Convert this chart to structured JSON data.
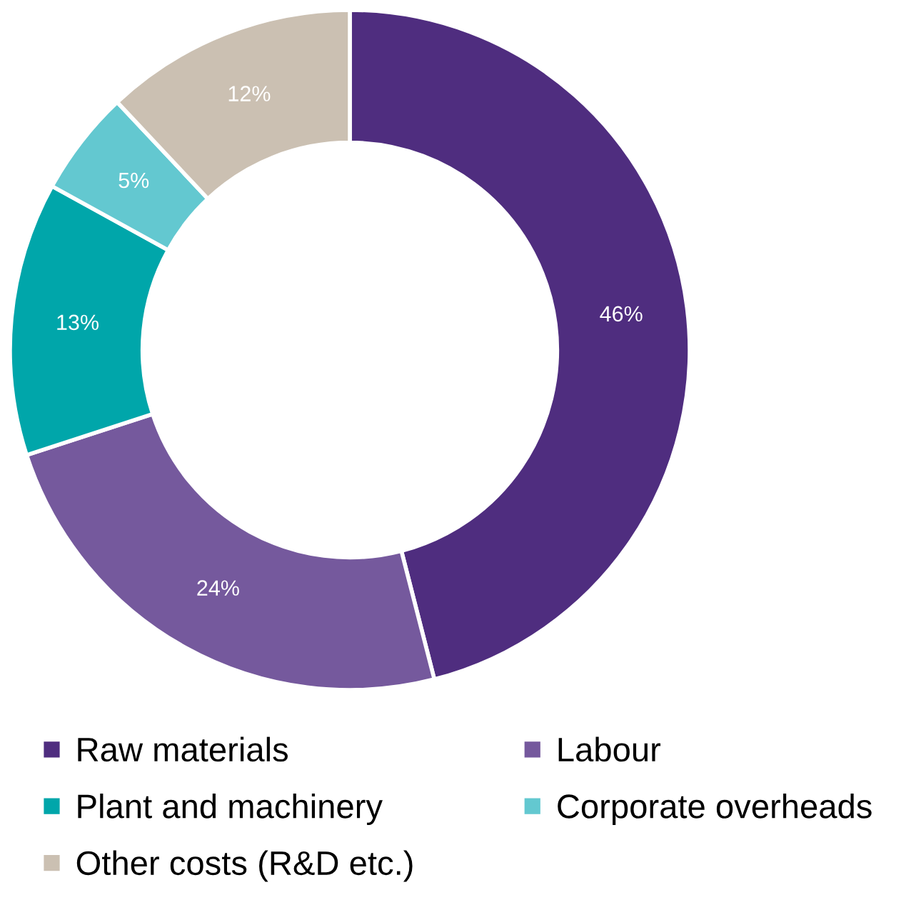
{
  "chart_data": {
    "type": "donut",
    "categories": [
      "Raw materials",
      "Labour",
      "Plant and machinery",
      "Corporate overheads",
      "Other costs (R&D etc.)"
    ],
    "values": [
      46,
      24,
      13,
      5,
      12
    ],
    "colors": [
      "#4f2d7f",
      "#75599d",
      "#00a6aa",
      "#63c8d0",
      "#cbc0b2"
    ],
    "value_labels": [
      "46%",
      "24%",
      "13%",
      "5%",
      "12%"
    ],
    "legend": "bottom"
  }
}
